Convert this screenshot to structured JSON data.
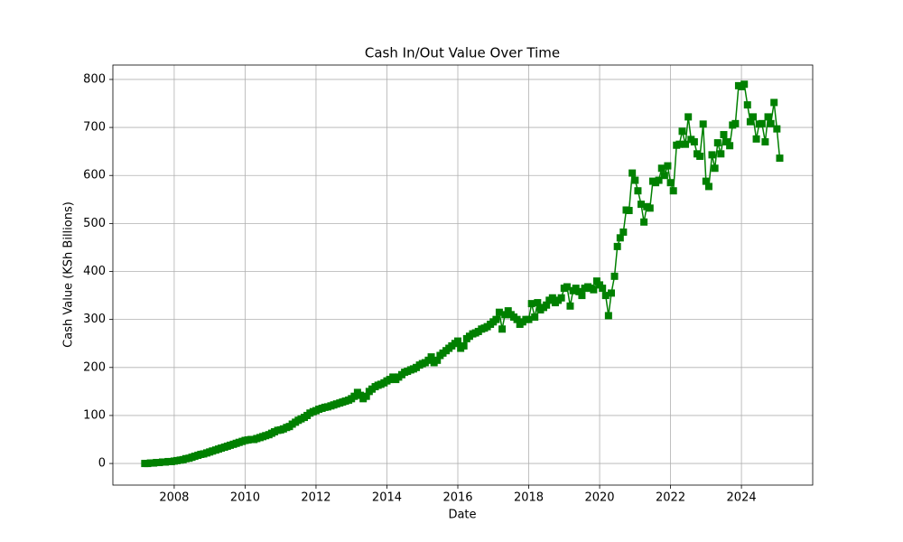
{
  "chart_data": {
    "type": "line",
    "title": "Cash In/Out Value Over Time",
    "xlabel": "Date",
    "ylabel": "Cash Value (KSh Billions)",
    "color": "#008000",
    "marker": "square",
    "grid": true,
    "xlim": [
      2006.27,
      2026.01
    ],
    "xticks": [
      2008,
      2010,
      2012,
      2014,
      2016,
      2018,
      2020,
      2022,
      2024
    ],
    "ylim": [
      -45,
      830
    ],
    "yticks": [
      0,
      100,
      200,
      300,
      400,
      500,
      600,
      700,
      800
    ],
    "x": [
      2007.17,
      2007.25,
      2007.33,
      2007.42,
      2007.5,
      2007.58,
      2007.67,
      2007.75,
      2007.83,
      2007.92,
      2008,
      2008.08,
      2008.17,
      2008.25,
      2008.33,
      2008.42,
      2008.5,
      2008.58,
      2008.67,
      2008.75,
      2008.83,
      2008.92,
      2009,
      2009.08,
      2009.17,
      2009.25,
      2009.33,
      2009.42,
      2009.5,
      2009.58,
      2009.67,
      2009.75,
      2009.83,
      2009.92,
      2010,
      2010.08,
      2010.17,
      2010.25,
      2010.33,
      2010.42,
      2010.5,
      2010.58,
      2010.67,
      2010.75,
      2010.83,
      2010.92,
      2011,
      2011.08,
      2011.17,
      2011.25,
      2011.33,
      2011.42,
      2011.5,
      2011.58,
      2011.67,
      2011.75,
      2011.83,
      2011.92,
      2012,
      2012.08,
      2012.17,
      2012.25,
      2012.33,
      2012.42,
      2012.5,
      2012.58,
      2012.67,
      2012.75,
      2012.83,
      2012.92,
      2013,
      2013.08,
      2013.17,
      2013.25,
      2013.33,
      2013.42,
      2013.5,
      2013.58,
      2013.67,
      2013.75,
      2013.83,
      2013.92,
      2014,
      2014.08,
      2014.17,
      2014.25,
      2014.33,
      2014.42,
      2014.5,
      2014.58,
      2014.67,
      2014.75,
      2014.83,
      2014.92,
      2015,
      2015.08,
      2015.17,
      2015.25,
      2015.33,
      2015.42,
      2015.5,
      2015.58,
      2015.67,
      2015.75,
      2015.83,
      2015.92,
      2016,
      2016.08,
      2016.17,
      2016.25,
      2016.33,
      2016.42,
      2016.5,
      2016.58,
      2016.67,
      2016.75,
      2016.83,
      2016.92,
      2017,
      2017.08,
      2017.17,
      2017.25,
      2017.33,
      2017.42,
      2017.5,
      2017.58,
      2017.67,
      2017.75,
      2017.83,
      2017.92,
      2018,
      2018.08,
      2018.17,
      2018.25,
      2018.33,
      2018.42,
      2018.5,
      2018.58,
      2018.67,
      2018.75,
      2018.83,
      2018.92,
      2019,
      2019.08,
      2019.17,
      2019.25,
      2019.33,
      2019.42,
      2019.5,
      2019.58,
      2019.67,
      2019.75,
      2019.83,
      2019.92,
      2020,
      2020.08,
      2020.17,
      2020.25,
      2020.33,
      2020.42,
      2020.5,
      2020.58,
      2020.67,
      2020.75,
      2020.83,
      2020.92,
      2021,
      2021.08,
      2021.17,
      2021.25,
      2021.33,
      2021.42,
      2021.5,
      2021.58,
      2021.67,
      2021.75,
      2021.83,
      2021.92,
      2022,
      2022.08,
      2022.17,
      2022.25,
      2022.33,
      2022.42,
      2022.5,
      2022.58,
      2022.67,
      2022.75,
      2022.83,
      2022.92,
      2023,
      2023.08,
      2023.17,
      2023.25,
      2023.33,
      2023.42,
      2023.5,
      2023.58,
      2023.67,
      2023.75,
      2023.83,
      2023.92,
      2024,
      2024.08,
      2024.17,
      2024.25,
      2024.33,
      2024.42,
      2024.5,
      2024.58,
      2024.67,
      2024.75,
      2024.83,
      2024.92,
      2025,
      2025.08
    ],
    "values": [
      0,
      0,
      1,
      1,
      2,
      2,
      3,
      3,
      4,
      4,
      5,
      6,
      7,
      8,
      10,
      11,
      13,
      15,
      17,
      19,
      20,
      22,
      24,
      26,
      28,
      30,
      32,
      34,
      36,
      38,
      40,
      42,
      44,
      46,
      48,
      49,
      50,
      50,
      52,
      54,
      56,
      58,
      60,
      63,
      66,
      69,
      70,
      72,
      75,
      77,
      82,
      86,
      90,
      93,
      96,
      100,
      105,
      108,
      110,
      113,
      115,
      117,
      118,
      120,
      122,
      124,
      126,
      128,
      130,
      132,
      135,
      140,
      148,
      142,
      135,
      140,
      150,
      155,
      160,
      163,
      165,
      168,
      172,
      175,
      180,
      175,
      180,
      185,
      190,
      192,
      195,
      197,
      200,
      205,
      208,
      210,
      215,
      222,
      210,
      215,
      225,
      230,
      235,
      240,
      245,
      250,
      255,
      240,
      245,
      260,
      265,
      270,
      272,
      275,
      280,
      282,
      285,
      290,
      295,
      300,
      315,
      280,
      310,
      318,
      310,
      305,
      300,
      290,
      295,
      300,
      300,
      333,
      305,
      335,
      320,
      325,
      330,
      340,
      345,
      335,
      340,
      345,
      365,
      368,
      328,
      360,
      365,
      358,
      350,
      365,
      368,
      365,
      362,
      380,
      372,
      365,
      350,
      308,
      355,
      390,
      452,
      470,
      482,
      528,
      527,
      605,
      590,
      568,
      540,
      503,
      535,
      532,
      588,
      585,
      590,
      615,
      600,
      620,
      585,
      568,
      663,
      665,
      692,
      665,
      722,
      675,
      670,
      645,
      640,
      707,
      588,
      577,
      643,
      615,
      668,
      645,
      685,
      670,
      662,
      705,
      708,
      787,
      785,
      790,
      747,
      712,
      722,
      676,
      707,
      708,
      670,
      722,
      708,
      752,
      697,
      636
    ]
  }
}
